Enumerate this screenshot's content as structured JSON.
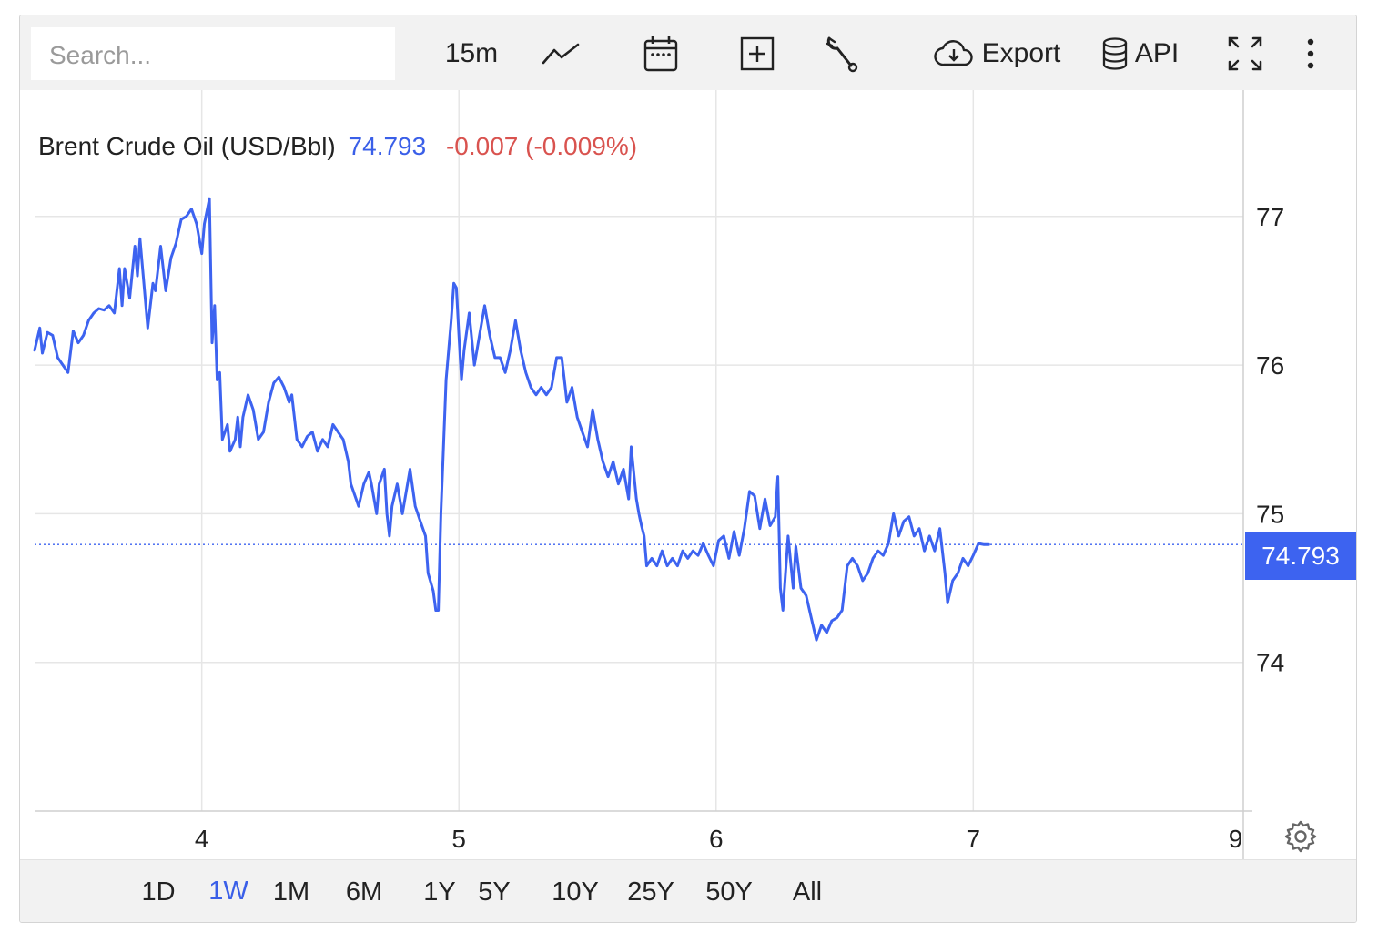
{
  "toolbar": {
    "search_placeholder": "Search...",
    "interval_label": "15m",
    "export_label": "Export",
    "api_label": "API",
    "icons": [
      "line-chart-icon",
      "calendar-icon",
      "add-box-icon",
      "wrench-icon",
      "cloud-download-icon",
      "database-icon",
      "fullscreen-icon",
      "more-vertical-icon"
    ]
  },
  "legend": {
    "name": "Brent Crude Oil (USD/Bbl)",
    "price": "74.793",
    "change": "-0.007 (-0.009%)"
  },
  "price_tag": "74.793",
  "colors": {
    "line": "#3d63f0",
    "price": "#3a5fe8",
    "change_negative": "#d9534f",
    "grid": "#e6e6e6",
    "toolbar_bg": "#f2f2f2"
  },
  "ranges": [
    {
      "label": "1D",
      "active": false
    },
    {
      "label": "1W",
      "active": true
    },
    {
      "label": "1M",
      "active": false
    },
    {
      "label": "6M",
      "active": false
    },
    {
      "label": "1Y",
      "active": false
    },
    {
      "label": "5Y",
      "active": false
    },
    {
      "label": "10Y",
      "active": false
    },
    {
      "label": "25Y",
      "active": false
    },
    {
      "label": "50Y",
      "active": false
    },
    {
      "label": "All",
      "active": false
    }
  ],
  "chart_data": {
    "type": "line",
    "title": "Brent Crude Oil (USD/Bbl)",
    "xlabel": "",
    "ylabel": "",
    "x_tick_labels": [
      "4",
      "5",
      "6",
      "7",
      "9"
    ],
    "y_tick_labels": [
      "77",
      "76",
      "75",
      "74"
    ],
    "ylim": [
      73.0,
      77.85
    ],
    "xlim": [
      3.35,
      8.05
    ],
    "grid": true,
    "last_value": 74.793,
    "series": [
      {
        "values": [
          [
            3.35,
            76.1
          ],
          [
            3.37,
            76.25
          ],
          [
            3.38,
            76.08
          ],
          [
            3.4,
            76.22
          ],
          [
            3.42,
            76.2
          ],
          [
            3.44,
            76.05
          ],
          [
            3.46,
            76.0
          ],
          [
            3.48,
            75.95
          ],
          [
            3.5,
            76.23
          ],
          [
            3.52,
            76.15
          ],
          [
            3.54,
            76.2
          ],
          [
            3.56,
            76.3
          ],
          [
            3.58,
            76.35
          ],
          [
            3.6,
            76.38
          ],
          [
            3.62,
            76.37
          ],
          [
            3.64,
            76.4
          ],
          [
            3.66,
            76.35
          ],
          [
            3.68,
            76.65
          ],
          [
            3.69,
            76.4
          ],
          [
            3.7,
            76.65
          ],
          [
            3.72,
            76.45
          ],
          [
            3.74,
            76.8
          ],
          [
            3.75,
            76.6
          ],
          [
            3.76,
            76.85
          ],
          [
            3.78,
            76.45
          ],
          [
            3.79,
            76.25
          ],
          [
            3.81,
            76.55
          ],
          [
            3.82,
            76.5
          ],
          [
            3.84,
            76.8
          ],
          [
            3.86,
            76.5
          ],
          [
            3.88,
            76.72
          ],
          [
            3.9,
            76.82
          ],
          [
            3.92,
            76.98
          ],
          [
            3.94,
            77.0
          ],
          [
            3.96,
            77.05
          ],
          [
            3.98,
            76.95
          ],
          [
            4.0,
            76.75
          ],
          [
            4.01,
            76.95
          ],
          [
            4.03,
            77.12
          ],
          [
            4.04,
            76.15
          ],
          [
            4.05,
            76.4
          ],
          [
            4.06,
            75.9
          ],
          [
            4.07,
            75.95
          ],
          [
            4.08,
            75.5
          ],
          [
            4.1,
            75.6
          ],
          [
            4.11,
            75.42
          ],
          [
            4.13,
            75.5
          ],
          [
            4.14,
            75.65
          ],
          [
            4.15,
            75.45
          ],
          [
            4.16,
            75.65
          ],
          [
            4.18,
            75.8
          ],
          [
            4.2,
            75.7
          ],
          [
            4.22,
            75.5
          ],
          [
            4.24,
            75.55
          ],
          [
            4.26,
            75.75
          ],
          [
            4.28,
            75.88
          ],
          [
            4.3,
            75.92
          ],
          [
            4.32,
            75.85
          ],
          [
            4.34,
            75.75
          ],
          [
            4.35,
            75.8
          ],
          [
            4.37,
            75.5
          ],
          [
            4.39,
            75.45
          ],
          [
            4.41,
            75.52
          ],
          [
            4.43,
            75.55
          ],
          [
            4.45,
            75.42
          ],
          [
            4.47,
            75.5
          ],
          [
            4.49,
            75.45
          ],
          [
            4.51,
            75.6
          ],
          [
            4.53,
            75.55
          ],
          [
            4.55,
            75.5
          ],
          [
            4.57,
            75.35
          ],
          [
            4.58,
            75.2
          ],
          [
            4.6,
            75.1
          ],
          [
            4.61,
            75.05
          ],
          [
            4.63,
            75.2
          ],
          [
            4.65,
            75.28
          ],
          [
            4.66,
            75.2
          ],
          [
            4.68,
            75.0
          ],
          [
            4.69,
            75.2
          ],
          [
            4.71,
            75.3
          ],
          [
            4.72,
            75.0
          ],
          [
            4.73,
            74.85
          ],
          [
            4.74,
            75.05
          ],
          [
            4.76,
            75.2
          ],
          [
            4.78,
            75.0
          ],
          [
            4.79,
            75.1
          ],
          [
            4.81,
            75.3
          ],
          [
            4.83,
            75.05
          ],
          [
            4.85,
            74.95
          ],
          [
            4.87,
            74.85
          ],
          [
            4.88,
            74.6
          ],
          [
            4.9,
            74.48
          ],
          [
            4.91,
            74.35
          ],
          [
            4.92,
            74.35
          ],
          [
            4.93,
            75.0
          ],
          [
            4.95,
            75.9
          ],
          [
            4.97,
            76.3
          ],
          [
            4.98,
            76.55
          ],
          [
            4.99,
            76.52
          ],
          [
            5.0,
            76.2
          ],
          [
            5.01,
            75.9
          ],
          [
            5.02,
            76.1
          ],
          [
            5.04,
            76.35
          ],
          [
            5.06,
            76.0
          ],
          [
            5.08,
            76.2
          ],
          [
            5.1,
            76.4
          ],
          [
            5.12,
            76.2
          ],
          [
            5.14,
            76.05
          ],
          [
            5.16,
            76.05
          ],
          [
            5.18,
            75.95
          ],
          [
            5.2,
            76.1
          ],
          [
            5.22,
            76.3
          ],
          [
            5.24,
            76.1
          ],
          [
            5.26,
            75.95
          ],
          [
            5.28,
            75.85
          ],
          [
            5.3,
            75.8
          ],
          [
            5.32,
            75.85
          ],
          [
            5.34,
            75.8
          ],
          [
            5.36,
            75.85
          ],
          [
            5.38,
            76.05
          ],
          [
            5.4,
            76.05
          ],
          [
            5.41,
            75.9
          ],
          [
            5.42,
            75.75
          ],
          [
            5.44,
            75.85
          ],
          [
            5.46,
            75.65
          ],
          [
            5.48,
            75.55
          ],
          [
            5.5,
            75.45
          ],
          [
            5.52,
            75.7
          ],
          [
            5.54,
            75.5
          ],
          [
            5.56,
            75.35
          ],
          [
            5.58,
            75.25
          ],
          [
            5.6,
            75.35
          ],
          [
            5.62,
            75.2
          ],
          [
            5.64,
            75.3
          ],
          [
            5.66,
            75.1
          ],
          [
            5.67,
            75.45
          ],
          [
            5.69,
            75.1
          ],
          [
            5.7,
            75.0
          ],
          [
            5.71,
            74.92
          ],
          [
            5.72,
            74.85
          ],
          [
            5.73,
            74.65
          ],
          [
            5.75,
            74.7
          ],
          [
            5.77,
            74.65
          ],
          [
            5.79,
            74.75
          ],
          [
            5.81,
            74.65
          ],
          [
            5.83,
            74.7
          ],
          [
            5.85,
            74.65
          ],
          [
            5.87,
            74.75
          ],
          [
            5.89,
            74.7
          ],
          [
            5.91,
            74.75
          ],
          [
            5.93,
            74.72
          ],
          [
            5.95,
            74.8
          ],
          [
            5.97,
            74.72
          ],
          [
            5.99,
            74.65
          ],
          [
            6.01,
            74.82
          ],
          [
            6.03,
            74.85
          ],
          [
            6.05,
            74.7
          ],
          [
            6.07,
            74.88
          ],
          [
            6.09,
            74.72
          ],
          [
            6.11,
            74.9
          ],
          [
            6.13,
            75.15
          ],
          [
            6.15,
            75.12
          ],
          [
            6.17,
            74.9
          ],
          [
            6.19,
            75.1
          ],
          [
            6.21,
            74.92
          ],
          [
            6.23,
            74.98
          ],
          [
            6.24,
            75.25
          ],
          [
            6.25,
            74.5
          ],
          [
            6.26,
            74.35
          ],
          [
            6.28,
            74.85
          ],
          [
            6.3,
            74.5
          ],
          [
            6.31,
            74.78
          ],
          [
            6.33,
            74.5
          ],
          [
            6.35,
            74.45
          ],
          [
            6.37,
            74.3
          ],
          [
            6.39,
            74.15
          ],
          [
            6.41,
            74.25
          ],
          [
            6.43,
            74.2
          ],
          [
            6.45,
            74.28
          ],
          [
            6.47,
            74.3
          ],
          [
            6.49,
            74.35
          ],
          [
            6.51,
            74.65
          ],
          [
            6.53,
            74.7
          ],
          [
            6.55,
            74.65
          ],
          [
            6.57,
            74.55
          ],
          [
            6.59,
            74.6
          ],
          [
            6.61,
            74.7
          ],
          [
            6.63,
            74.75
          ],
          [
            6.65,
            74.72
          ],
          [
            6.67,
            74.8
          ],
          [
            6.69,
            75.0
          ],
          [
            6.71,
            74.85
          ],
          [
            6.73,
            74.95
          ],
          [
            6.75,
            74.98
          ],
          [
            6.77,
            74.85
          ],
          [
            6.79,
            74.9
          ],
          [
            6.81,
            74.75
          ],
          [
            6.83,
            74.85
          ],
          [
            6.85,
            74.75
          ],
          [
            6.87,
            74.9
          ],
          [
            6.89,
            74.6
          ],
          [
            6.9,
            74.4
          ],
          [
            6.92,
            74.55
          ],
          [
            6.94,
            74.6
          ],
          [
            6.96,
            74.7
          ],
          [
            6.98,
            74.65
          ],
          [
            7.0,
            74.72
          ],
          [
            7.02,
            74.8
          ],
          [
            7.04,
            74.793
          ],
          [
            7.06,
            74.793
          ]
        ]
      }
    ]
  }
}
